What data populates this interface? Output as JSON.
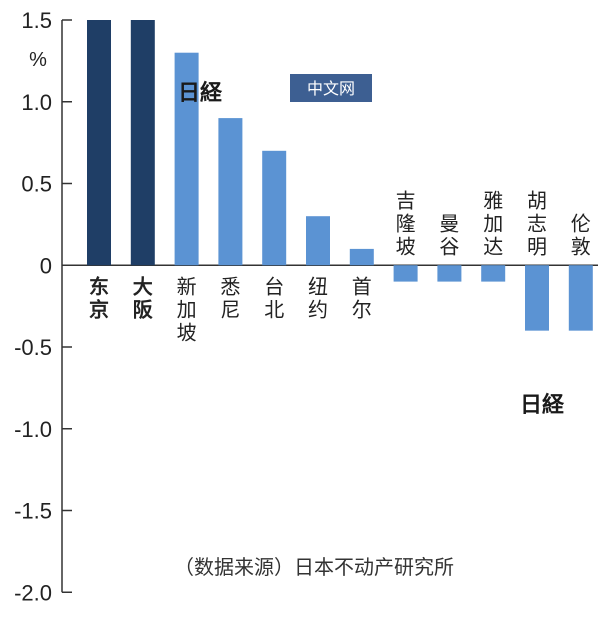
{
  "chart_data": {
    "type": "bar",
    "ylabel": "%",
    "ylim": [
      -2.0,
      1.5
    ],
    "yticks": [
      "1.5",
      "1.0",
      "0.5",
      "0",
      "-0.5",
      "-1.0",
      "-1.5",
      "-2.0"
    ],
    "yticks_values": [
      1.5,
      1.0,
      0.5,
      0,
      -0.5,
      -1.0,
      -1.5,
      -2.0
    ],
    "categories": [
      "东京",
      "大阪",
      "新加坡",
      "悉尼",
      "台北",
      "纽约",
      "首尔",
      "吉隆坡",
      "曼谷",
      "雅加达",
      "胡志明",
      "伦敦"
    ],
    "values": [
      1.5,
      1.5,
      1.3,
      0.9,
      0.7,
      0.3,
      0.1,
      -0.1,
      -0.1,
      -0.1,
      -0.4,
      -0.4
    ],
    "highlighted": [
      "东京",
      "大阪"
    ],
    "colors": {
      "highlight": "#1f3e66",
      "normal": "#5b93d3",
      "axis": "#333333"
    },
    "source": "（数据来源）日本不动产研究所"
  },
  "watermarks": {
    "logo_text": "日経",
    "badge_text": "中文网"
  }
}
